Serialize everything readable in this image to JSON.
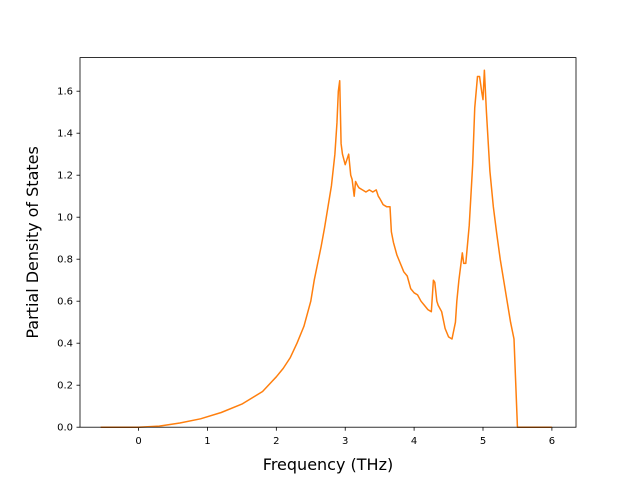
{
  "chart_data": {
    "type": "line",
    "xlabel": "Frequency (THz)",
    "ylabel": "Partial Density of States",
    "xlim": [
      -0.85,
      6.35
    ],
    "ylim": [
      0.0,
      1.76
    ],
    "xticks": [
      0,
      1,
      2,
      3,
      4,
      5,
      6
    ],
    "yticks": [
      0.0,
      0.2,
      0.4,
      0.6,
      0.8,
      1.0,
      1.2,
      1.4,
      1.6
    ],
    "ytick_labels": [
      "0.0",
      "0.2",
      "0.4",
      "0.6",
      "0.8",
      "1.0",
      "1.2",
      "1.4",
      "1.6"
    ],
    "grid": false,
    "series": [
      {
        "color": "#ff7f0e",
        "x": [
          -0.55,
          0.0,
          0.3,
          0.6,
          0.9,
          1.2,
          1.5,
          1.8,
          2.0,
          2.1,
          2.2,
          2.3,
          2.4,
          2.5,
          2.55,
          2.6,
          2.65,
          2.7,
          2.75,
          2.8,
          2.85,
          2.88,
          2.9,
          2.92,
          2.94,
          2.96,
          3.0,
          3.05,
          3.08,
          3.1,
          3.13,
          3.15,
          3.18,
          3.2,
          3.25,
          3.3,
          3.35,
          3.4,
          3.45,
          3.48,
          3.5,
          3.55,
          3.6,
          3.65,
          3.67,
          3.7,
          3.75,
          3.8,
          3.85,
          3.9,
          3.95,
          4.0,
          4.05,
          4.1,
          4.15,
          4.2,
          4.25,
          4.28,
          4.3,
          4.33,
          4.35,
          4.4,
          4.45,
          4.5,
          4.55,
          4.6,
          4.62,
          4.65,
          4.7,
          4.72,
          4.75,
          4.8,
          4.85,
          4.88,
          4.92,
          4.95,
          4.98,
          5.0,
          5.02,
          5.05,
          5.1,
          5.15,
          5.2,
          5.25,
          5.3,
          5.35,
          5.4,
          5.45,
          5.5,
          6.0
        ],
        "y": [
          0.0,
          0.0,
          0.005,
          0.02,
          0.04,
          0.07,
          0.11,
          0.17,
          0.24,
          0.28,
          0.33,
          0.4,
          0.48,
          0.6,
          0.7,
          0.78,
          0.86,
          0.95,
          1.05,
          1.15,
          1.3,
          1.45,
          1.6,
          1.65,
          1.35,
          1.3,
          1.25,
          1.3,
          1.2,
          1.18,
          1.1,
          1.17,
          1.15,
          1.14,
          1.13,
          1.12,
          1.13,
          1.12,
          1.13,
          1.1,
          1.09,
          1.06,
          1.05,
          1.05,
          0.93,
          0.88,
          0.82,
          0.78,
          0.74,
          0.72,
          0.66,
          0.64,
          0.63,
          0.6,
          0.58,
          0.56,
          0.55,
          0.7,
          0.69,
          0.6,
          0.58,
          0.55,
          0.47,
          0.43,
          0.42,
          0.5,
          0.6,
          0.7,
          0.83,
          0.78,
          0.78,
          0.96,
          1.25,
          1.52,
          1.67,
          1.67,
          1.6,
          1.56,
          1.7,
          1.5,
          1.22,
          1.05,
          0.92,
          0.8,
          0.7,
          0.6,
          0.5,
          0.42,
          0.0,
          0.0
        ]
      }
    ]
  }
}
